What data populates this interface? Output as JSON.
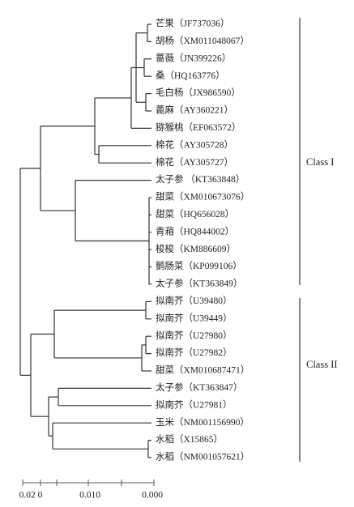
{
  "leaves": [
    "芒果（JF737036）",
    "胡杨（XM011048067）",
    "蔷薇（JN399226）",
    "桑（HQ163776）",
    "毛白杨（JX986590）",
    "蓖麻（AY360221）",
    "猕猴桃（EF063572）",
    "棉花（AY305728）",
    "棉花（AY305727）",
    "太子参 （KT363848）",
    "甜菜（XM010673076）",
    "甜菜（HQ656028）",
    "青葙（HQ844002）",
    "梭梭（KM886609）",
    "鹅肠菜（KP099106）",
    "太子参（KT363849）",
    "拟南芥（U39480）",
    "拟南芥（U39449）",
    "拟南芥（U27980）",
    "拟南芥（U27982）",
    "甜菜（XM010687471）",
    "太子参（KT363847）",
    "拟南芥（U27981）",
    "玉米（NM001156990）",
    "水稻（X15865）",
    "水稻（NM001057621）"
  ],
  "classes": [
    "Class I",
    "Class II"
  ],
  "scale_bar": {
    "labels": [
      "0.02 0",
      "0.010",
      "0.000"
    ]
  }
}
